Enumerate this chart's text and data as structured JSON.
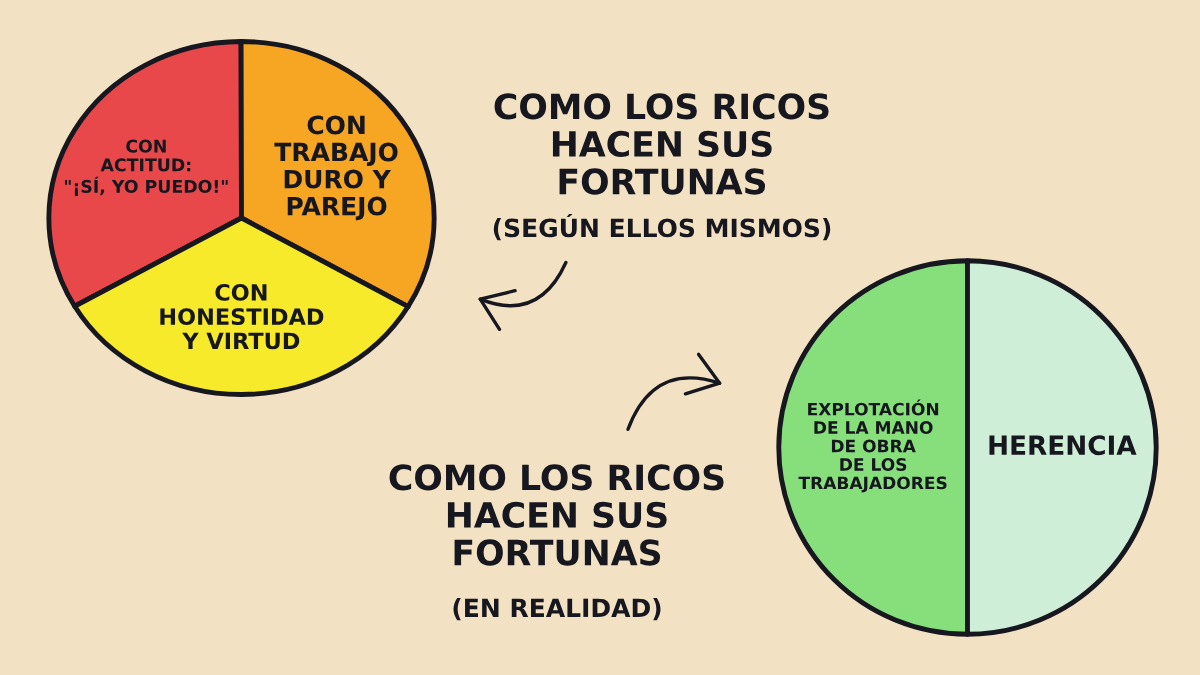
{
  "chart_data": [
    {
      "type": "pie",
      "title": "COMO LOS RICOS\nHACEN SUS\nFORTUNAS",
      "subtitle": "(SEGÚN ELLOS MISMOS)",
      "categories": [
        "CON\nACTITUD:\n\"¡SÍ, YO PUEDO!\"",
        "CON\nTRABAJO\nDURO Y\nPAREJO",
        "CON\nHONESTIDAD\nY VIRTUD"
      ],
      "values": [
        33.3,
        33.4,
        33.3
      ],
      "colors": [
        "#e9484b",
        "#f6a623",
        "#f7ea2b"
      ]
    },
    {
      "type": "pie",
      "title": "COMO LOS RICOS\nHACEN SUS\nFORTUNAS",
      "subtitle": "(EN REALIDAD)",
      "categories": [
        "EXPLOTACIÓN\nDE LA MANO\nDE OBRA\nDE LOS\nTRABAJADORES",
        "HERENCIA"
      ],
      "values": [
        50,
        50
      ],
      "colors": [
        "#87df7c",
        "#cfeed7"
      ]
    }
  ]
}
